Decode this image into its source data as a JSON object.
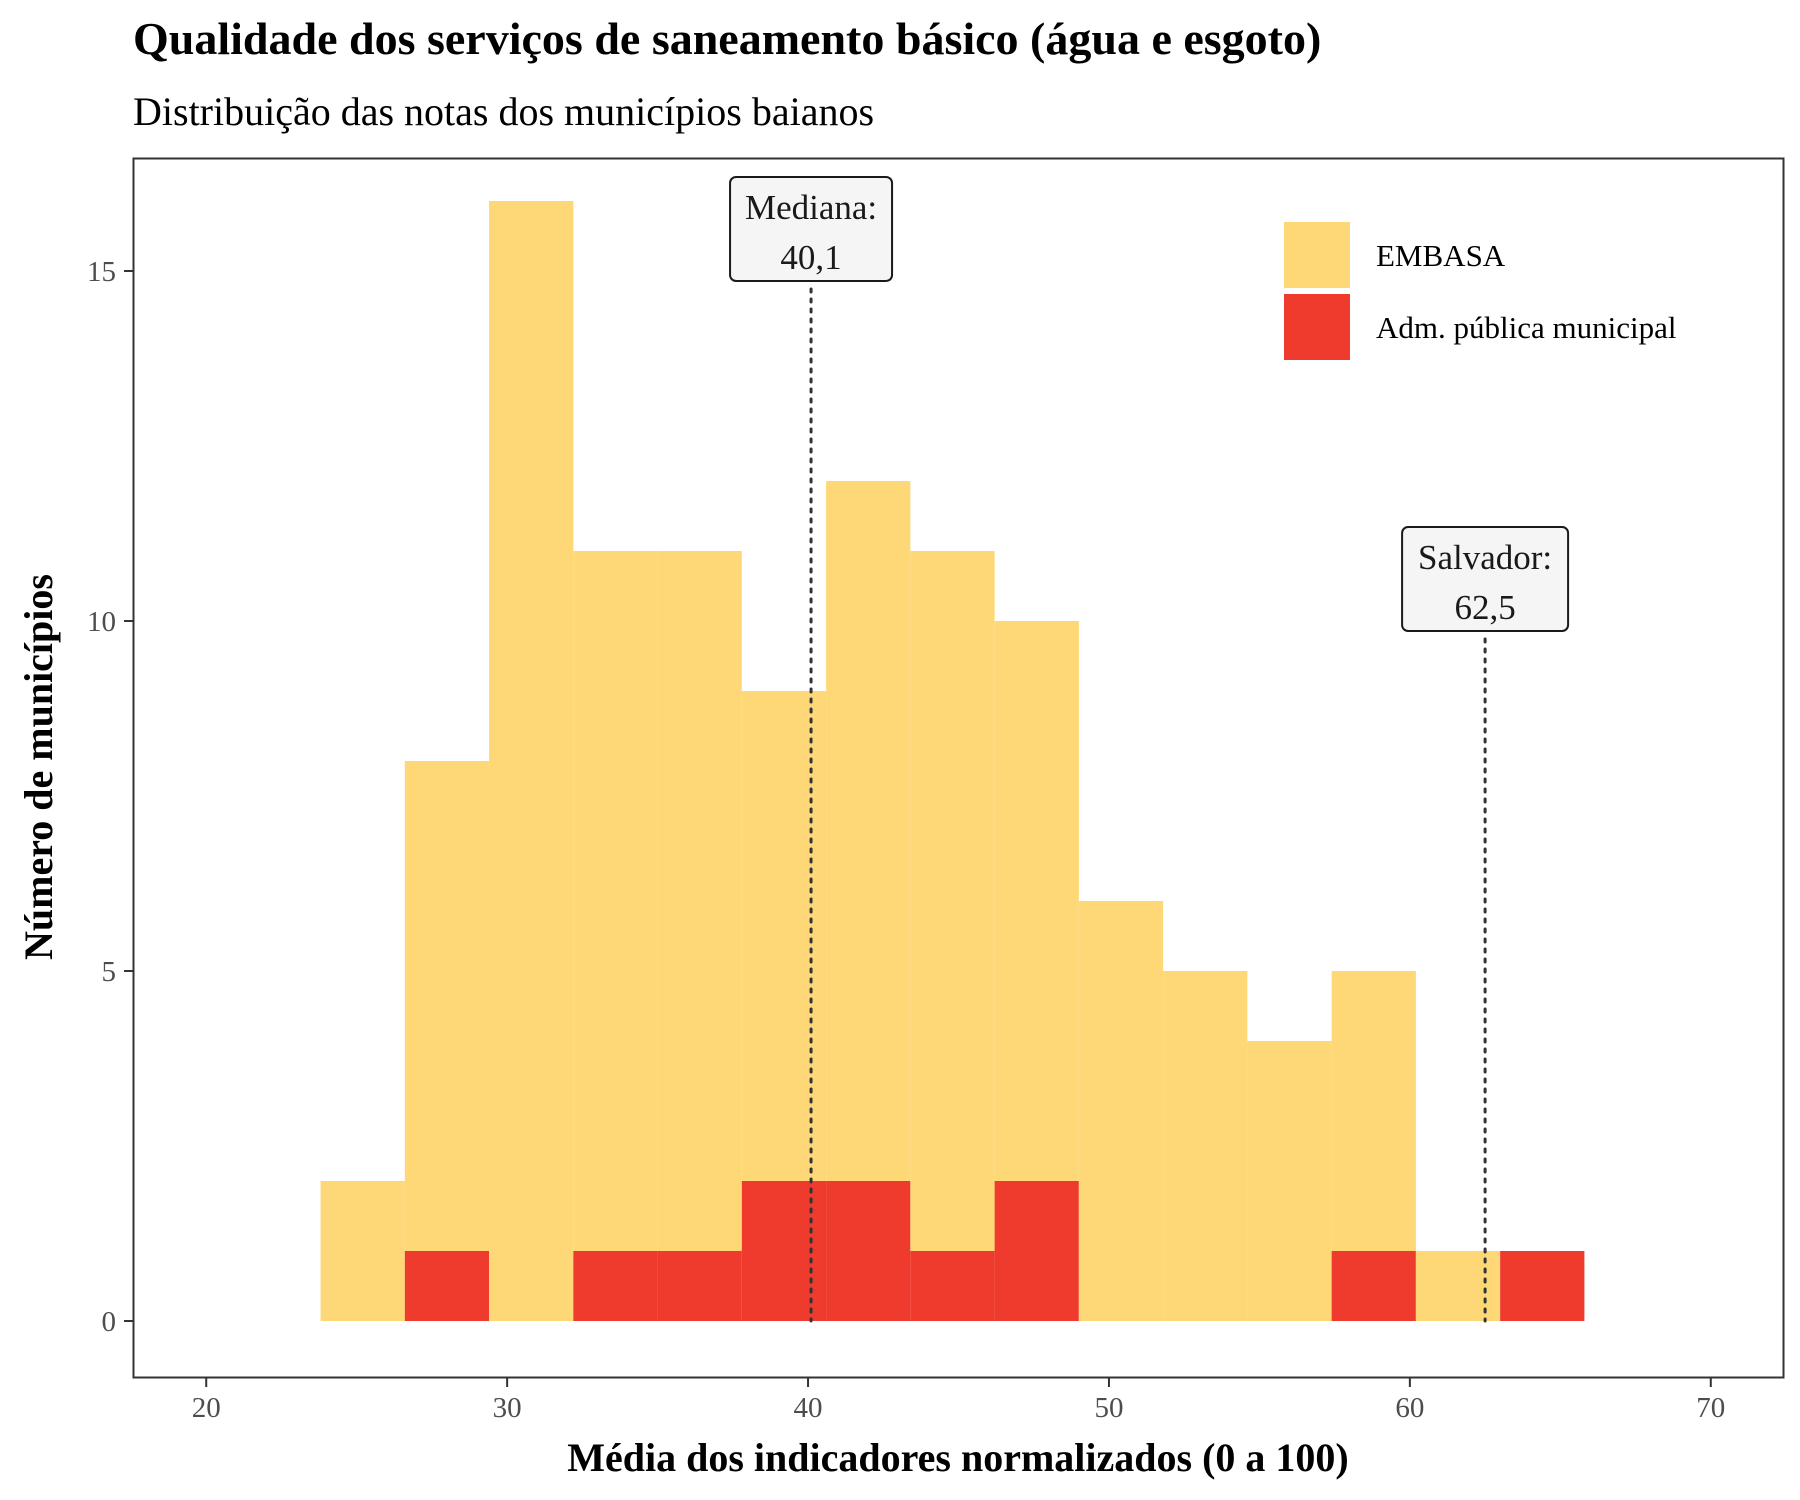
{
  "chart_data": {
    "type": "bar",
    "variant": "stacked-histogram",
    "title": "Qualidade dos serviços de saneamento básico (água e esgoto)",
    "subtitle": "Distribuição das notas dos municípios baianos",
    "xlabel": "Média dos indicadores normalizados (0 a 100)",
    "ylabel": "Número de municípios",
    "xlim": [
      17.6,
      72.4
    ],
    "ylim": [
      -0.8,
      16.6
    ],
    "xticks": [
      20,
      30,
      40,
      50,
      60,
      70
    ],
    "yticks": [
      0,
      5,
      10,
      15
    ],
    "grid": false,
    "legend_position": "top-right",
    "bins": [
      {
        "x0": 23.8,
        "x1": 26.6
      },
      {
        "x0": 26.6,
        "x1": 29.4
      },
      {
        "x0": 29.4,
        "x1": 32.2
      },
      {
        "x0": 32.2,
        "x1": 35.0
      },
      {
        "x0": 35.0,
        "x1": 37.8
      },
      {
        "x0": 37.8,
        "x1": 40.6
      },
      {
        "x0": 40.6,
        "x1": 43.4
      },
      {
        "x0": 43.4,
        "x1": 46.2
      },
      {
        "x0": 46.2,
        "x1": 49.0
      },
      {
        "x0": 49.0,
        "x1": 51.8
      },
      {
        "x0": 51.8,
        "x1": 54.6
      },
      {
        "x0": 54.6,
        "x1": 57.4
      },
      {
        "x0": 57.4,
        "x1": 60.2
      },
      {
        "x0": 60.2,
        "x1": 63.0
      },
      {
        "x0": 63.0,
        "x1": 65.8
      }
    ],
    "series": [
      {
        "name": "Adm. pública municipal",
        "color": "#ee3b2e",
        "values": [
          0,
          1,
          0,
          1,
          1,
          2,
          2,
          1,
          2,
          0,
          0,
          0,
          1,
          0,
          1
        ]
      },
      {
        "name": "EMBASA",
        "color": "#fed876",
        "values": [
          2,
          7,
          16,
          10,
          10,
          7,
          10,
          10,
          8,
          6,
          5,
          4,
          4,
          1,
          0
        ]
      }
    ],
    "legend_order": [
      "EMBASA",
      "Adm. pública municipal"
    ],
    "annotations": [
      {
        "x": 40.1,
        "line1": "Mediana:",
        "line2": "40,1",
        "label_y": 15.6
      },
      {
        "x": 62.5,
        "line1": "Salvador:",
        "line2": "62,5",
        "label_y": 10.6
      }
    ]
  }
}
